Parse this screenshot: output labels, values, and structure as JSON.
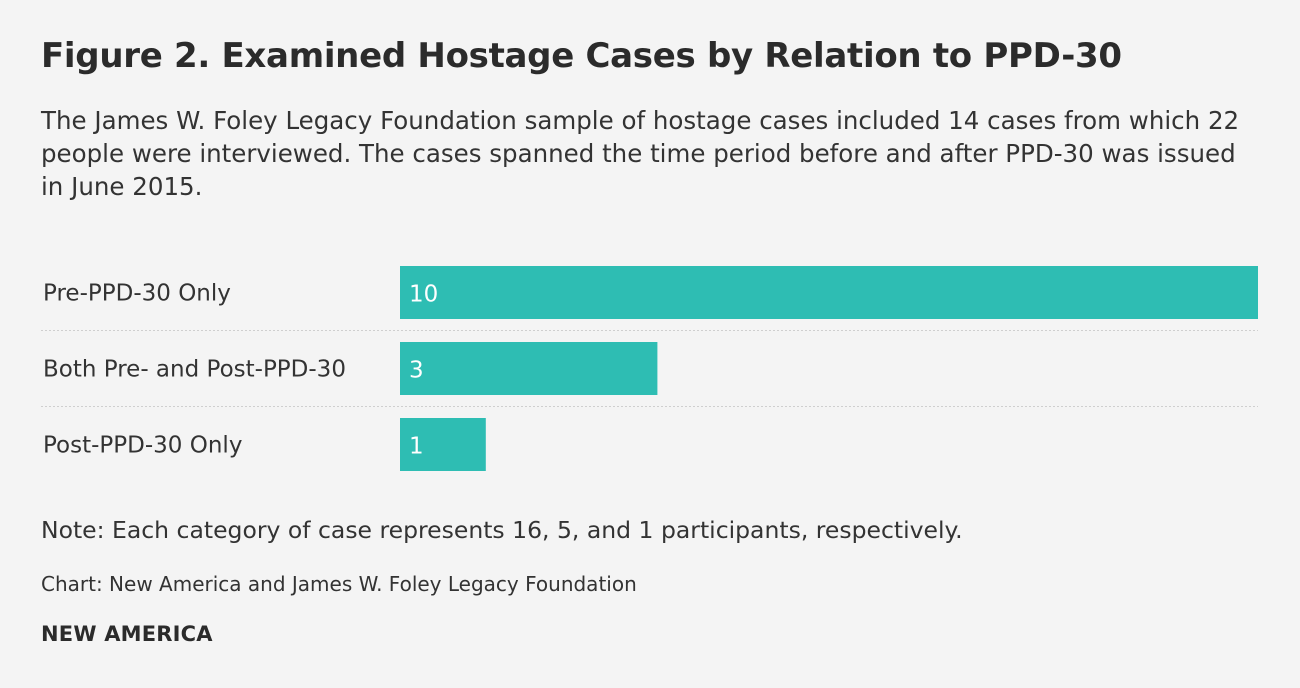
{
  "title": "Figure 2. Examined Hostage Cases by Relation to PPD-30",
  "subtitle": "The James W. Foley Legacy Foundation sample of hostage cases included 14 cases from which 22 people were interviewed. The cases spanned the time period before and after PPD-30 was issued in June 2015.",
  "note": "Note: Each category of case represents 16, 5, and 1 participants, respectively.",
  "source": "Chart: New America and James W. Foley Legacy Foundation",
  "brand": "NEW AMERICA",
  "colors": {
    "bar": "#2ebdb3",
    "bar_label": "#ffffff",
    "category_label": "#333333",
    "divider": "#cfcfcf"
  },
  "chart_data": {
    "type": "bar",
    "orientation": "horizontal",
    "categories": [
      "Pre-PPD-30 Only",
      "Both Pre- and Post-PPD-30",
      "Post-PPD-30 Only"
    ],
    "values": [
      10,
      3,
      1
    ],
    "xlim": [
      0,
      10
    ],
    "grid": false,
    "data_labels": true
  }
}
